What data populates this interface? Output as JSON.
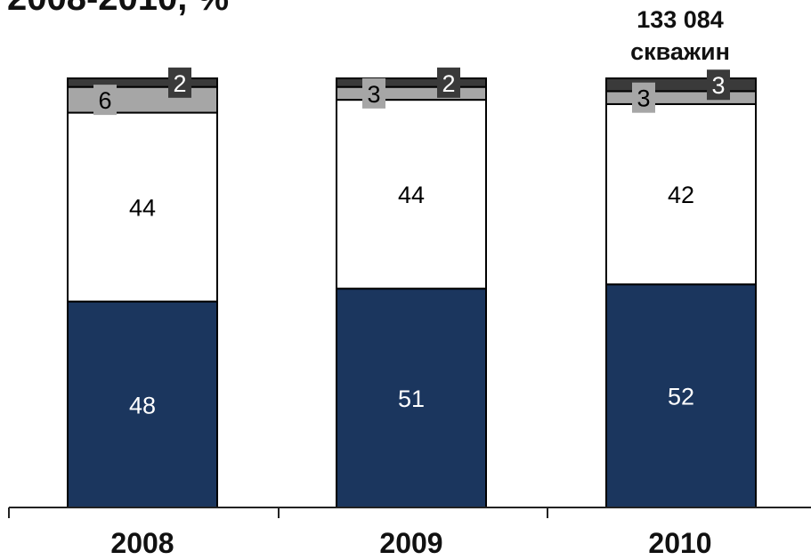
{
  "title_fragment": "2008-2010, %",
  "chart_data": {
    "type": "bar",
    "stacked": true,
    "categories": [
      "2008",
      "2009",
      "2010"
    ],
    "series": [
      {
        "values": [
          48,
          51,
          52
        ],
        "color": "#1b365e",
        "label_color": "#ffffff"
      },
      {
        "values": [
          44,
          44,
          42
        ],
        "color": "#ffffff",
        "label_color": "#000000"
      },
      {
        "values": [
          6,
          3,
          3
        ],
        "color": "#a6a6a6",
        "label_color": "#000000"
      },
      {
        "values": [
          2,
          2,
          3
        ],
        "color": "#3a3a3a",
        "label_color": "#ffffff"
      }
    ],
    "annotations": [
      {
        "category": "2010",
        "text_line1": "133 084",
        "text_line2": "скважин"
      }
    ],
    "ylim": [
      0,
      100
    ],
    "grid": false,
    "legend": "none"
  }
}
